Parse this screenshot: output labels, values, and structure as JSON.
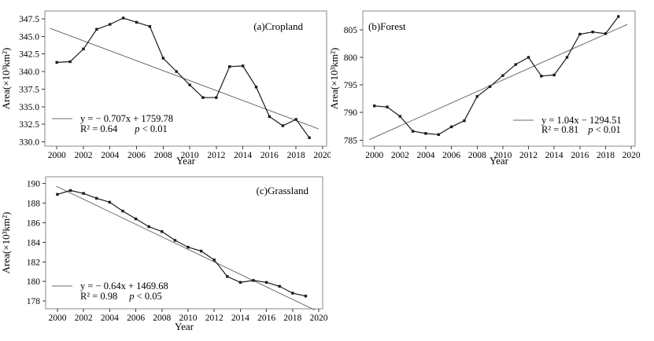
{
  "figure": {
    "background": "#ffffff",
    "text_color": "#000000",
    "series_color": "#1a1a1a",
    "trend_color": "#6e6e6e",
    "frame_color": "#8a8a8a",
    "tick_color": "#3a3a3a"
  },
  "chart_data": [
    {
      "type": "line",
      "panel": "a",
      "title": "(a)Cropland",
      "xlabel": "Year",
      "ylabel": "Area(×10³km²)",
      "x": [
        2000,
        2001,
        2002,
        2003,
        2004,
        2005,
        2006,
        2007,
        2008,
        2009,
        2010,
        2011,
        2012,
        2013,
        2014,
        2015,
        2016,
        2017,
        2018,
        2019
      ],
      "series": [
        {
          "name": "Cropland area",
          "values": [
            341.3,
            341.4,
            343.2,
            346.0,
            346.7,
            347.6,
            347.0,
            346.4,
            341.9,
            340.0,
            338.1,
            336.3,
            336.3,
            340.7,
            340.8,
            337.8,
            333.6,
            332.3,
            333.2,
            330.6
          ]
        }
      ],
      "trend": {
        "slope": -0.707,
        "intercept": 1759.78
      },
      "legend": {
        "equation": "y = − 0.707x + 1759.78",
        "r2": "R² = 0.64",
        "p": "p < 0.01"
      },
      "xlim": [
        1999.1,
        2020.3
      ],
      "ylim": [
        329.4,
        348.6
      ],
      "xticks": [
        2000,
        2002,
        2004,
        2006,
        2008,
        2010,
        2012,
        2014,
        2016,
        2018,
        2020
      ],
      "yticks": [
        330.0,
        332.5,
        335.0,
        337.5,
        340.0,
        342.5,
        345.0,
        347.5
      ],
      "ytick_labels": [
        "330.0",
        "332.5",
        "335.0",
        "337.5",
        "340.0",
        "342.5",
        "345.0",
        "347.5"
      ],
      "grid": false,
      "legend_position": "inside-bottom-left",
      "title_position": "inside-top-right"
    },
    {
      "type": "line",
      "panel": "b",
      "title": "(b)Forest",
      "xlabel": "Year",
      "ylabel": "Area(×10³km²)",
      "x": [
        2000,
        2001,
        2002,
        2003,
        2004,
        2005,
        2006,
        2007,
        2008,
        2009,
        2010,
        2011,
        2012,
        2013,
        2014,
        2015,
        2016,
        2017,
        2018,
        2019
      ],
      "series": [
        {
          "name": "Forest area",
          "values": [
            791.2,
            791.0,
            789.3,
            786.6,
            786.2,
            786.0,
            787.4,
            788.5,
            792.9,
            794.7,
            796.7,
            798.7,
            800.0,
            796.6,
            796.8,
            800.0,
            804.2,
            804.6,
            804.3,
            807.4
          ]
        }
      ],
      "trend": {
        "slope": 1.04,
        "intercept": -1294.51
      },
      "legend": {
        "equation": "y = 1.04x − 1294.51",
        "r2": "R² = 0.81",
        "p": "p < 0.01"
      },
      "xlim": [
        1999.1,
        2020.3
      ],
      "ylim": [
        783.9,
        808.4
      ],
      "xticks": [
        2000,
        2002,
        2004,
        2006,
        2008,
        2010,
        2012,
        2014,
        2016,
        2018,
        2020
      ],
      "yticks": [
        785,
        790,
        795,
        800,
        805
      ],
      "ytick_labels": [
        "785",
        "790",
        "795",
        "800",
        "805"
      ],
      "grid": false,
      "legend_position": "inside-bottom-right",
      "title_position": "inside-top-left"
    },
    {
      "type": "line",
      "panel": "c",
      "title": "(c)Grassland",
      "xlabel": "Year",
      "ylabel": "Area(×10³km²)",
      "x": [
        2000,
        2001,
        2002,
        2003,
        2004,
        2005,
        2006,
        2007,
        2008,
        2009,
        2010,
        2011,
        2012,
        2013,
        2014,
        2015,
        2016,
        2017,
        2018,
        2019
      ],
      "series": [
        {
          "name": "Grassland area",
          "values": [
            188.9,
            189.3,
            189.0,
            188.5,
            188.1,
            187.2,
            186.4,
            185.6,
            185.1,
            184.2,
            183.5,
            183.1,
            182.2,
            180.5,
            179.9,
            180.1,
            179.9,
            179.5,
            178.8,
            178.5
          ]
        }
      ],
      "trend": {
        "slope": -0.64,
        "intercept": 1469.68
      },
      "legend": {
        "equation": "y = − 0.64x + 1469.68",
        "r2": "R² = 0.98",
        "p": "p < 0.05"
      },
      "xlim": [
        1999.1,
        2020.3
      ],
      "ylim": [
        177.2,
        190.7
      ],
      "xticks": [
        2000,
        2002,
        2004,
        2006,
        2008,
        2010,
        2012,
        2014,
        2016,
        2018,
        2020
      ],
      "yticks": [
        178,
        180,
        182,
        184,
        186,
        188,
        190
      ],
      "ytick_labels": [
        "178",
        "180",
        "182",
        "184",
        "186",
        "188",
        "190"
      ],
      "grid": false,
      "legend_position": "inside-bottom-left",
      "title_position": "inside-top-right"
    }
  ]
}
